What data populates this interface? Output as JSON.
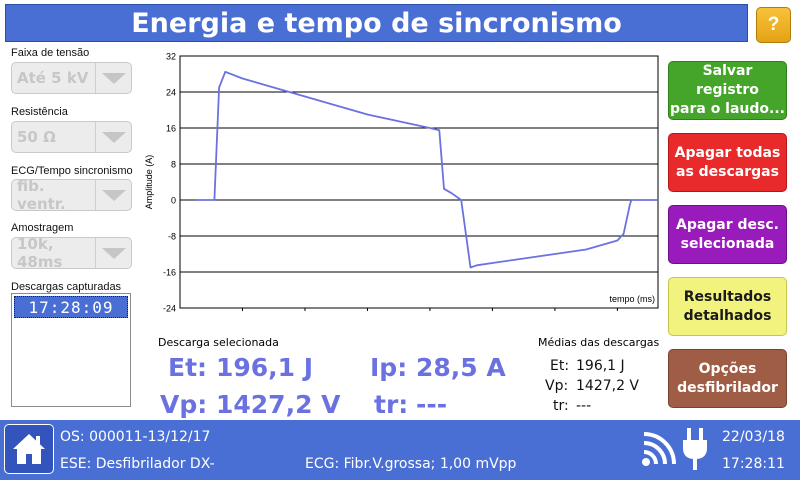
{
  "title": "Energia e tempo de sincronismo",
  "help_label": "?",
  "left": {
    "faixa": {
      "label": "Faixa de tensão",
      "value": "Até 5 kV"
    },
    "resistencia": {
      "label": "Resistência",
      "value": "50 Ω"
    },
    "ecg": {
      "label": "ECG/Tempo sincronismo",
      "value": "fib. ventr."
    },
    "amostragem": {
      "label": "Amostragem",
      "value": "10k, 48ms"
    },
    "descargas": {
      "label": "Descargas capturadas",
      "items": [
        "17:28:09"
      ]
    }
  },
  "chart_data": {
    "type": "line",
    "ylabel": "Amplitude (A)",
    "xlabel": "tempo (ms)",
    "xlim": [
      0,
      15.3
    ],
    "ylim": [
      -24,
      32
    ],
    "xticks": [
      2,
      4,
      6,
      8,
      10,
      12,
      14
    ],
    "yticks": [
      32,
      24,
      16,
      8,
      0,
      -8,
      -16,
      -24
    ],
    "grid": "horizontal",
    "series": [
      {
        "color": "#6b72e0",
        "x": [
          0.5,
          1.1,
          1.25,
          1.45,
          2,
          3,
          4,
          5,
          6,
          7,
          8,
          8.3,
          8.45,
          8.7,
          9.0,
          9.3,
          9.5,
          10,
          11,
          12,
          13,
          14,
          14.2,
          14.4,
          14.45,
          15.3
        ],
        "y": [
          0,
          0,
          25,
          28.5,
          27,
          25,
          23,
          21,
          19,
          17.5,
          16,
          15.5,
          2.5,
          1.5,
          0,
          -15,
          -14.5,
          -14,
          -13,
          -12,
          -11,
          -9,
          -7.5,
          -1,
          0,
          0
        ]
      }
    ]
  },
  "stats": {
    "section_label": "Descarga selecionada",
    "et_label": "Et:",
    "et_value": "196,1 J",
    "ip_label": "Ip:",
    "ip_value": "28,5 A",
    "vp_label": "Vp:",
    "vp_value": "1427,2 V",
    "tr_label": "tr:",
    "tr_value": "---"
  },
  "averages": {
    "section_label": "Médias das descargas",
    "et_label": "Et:",
    "et_value": "196,1 J",
    "vp_label": "Vp:",
    "vp_value": "1427,2 V",
    "tr_label": "tr:",
    "tr_value": "---"
  },
  "buttons": {
    "save": "Salvar registro\npara o laudo...",
    "delete_all": "Apagar todas\nas descargas",
    "delete_selected": "Apagar desc.\nselecionada",
    "detailed": "Resultados\ndetalhados",
    "defib_options": "Opções\ndesfibrilador"
  },
  "footer": {
    "os": "OS: 000011-13/12/17",
    "ese": "ESE: Desfibrilador DX-",
    "ecg": "ECG: Fibr.V.grossa; 1,00 mVpp",
    "date": "22/03/18",
    "time": "17:28:11"
  },
  "icons": {
    "home": "home-icon",
    "wifi": "wifi-icon",
    "power": "power-plug-icon"
  },
  "colors": {
    "accent": "#4a6fd4",
    "trace": "#6b72e0"
  }
}
